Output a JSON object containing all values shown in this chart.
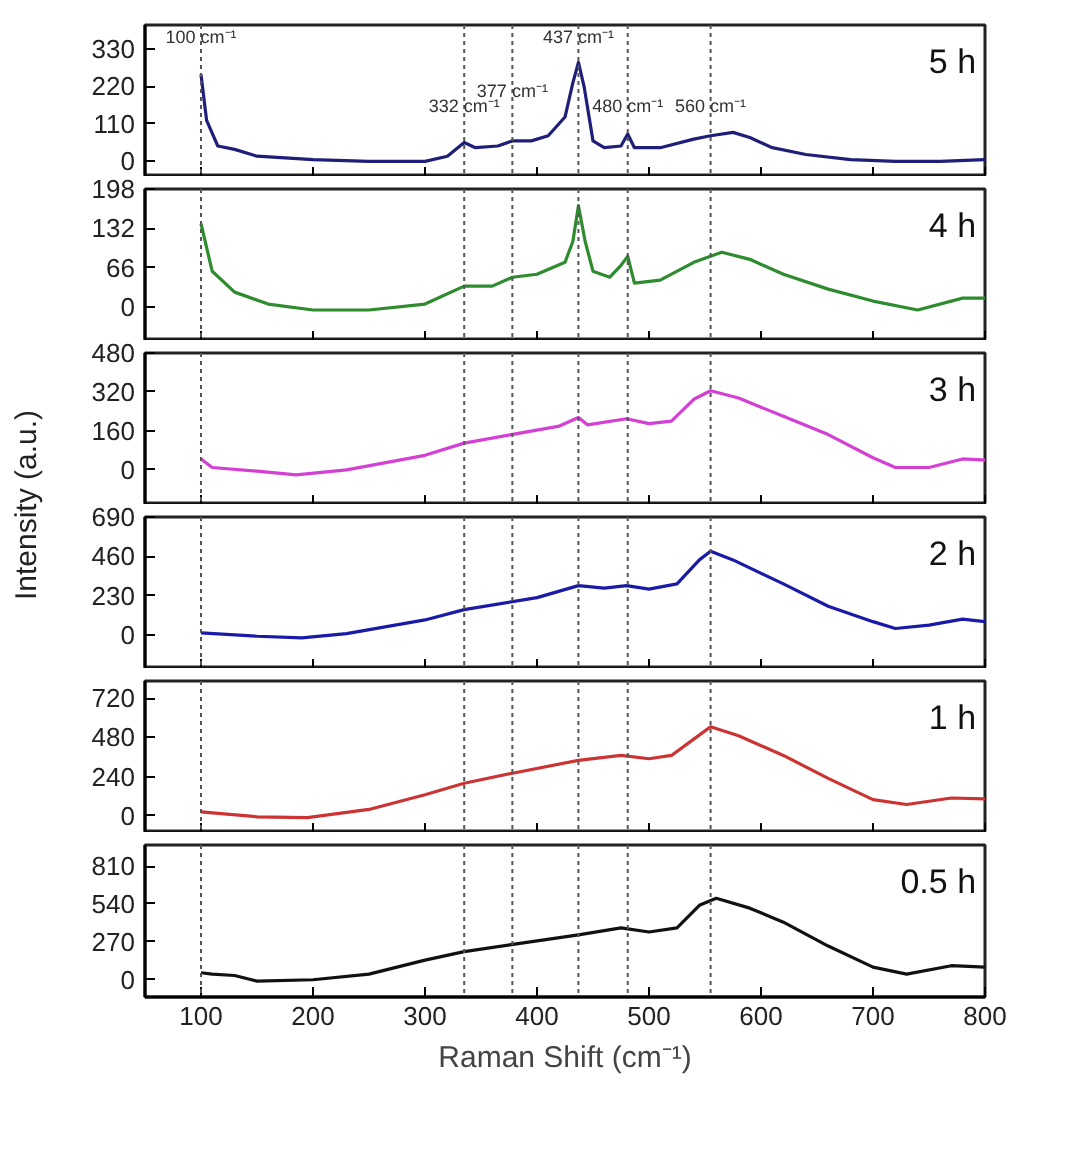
{
  "chart_data": [
    {
      "type": "line",
      "xlim": [
        50,
        800
      ],
      "xticks": [
        100,
        200,
        300,
        400,
        500,
        600,
        700,
        800
      ],
      "ylim": [
        -46,
        400
      ],
      "yticks": [
        0,
        110,
        220,
        330
      ],
      "tick_labels": "y",
      "ref_lines": [
        {
          "axis": "x",
          "value": 100,
          "label": "100 cm⁻¹"
        },
        {
          "axis": "x",
          "value": 335,
          "label": "332 cm⁻¹"
        },
        {
          "axis": "x",
          "value": 378,
          "label": "377 cm⁻¹"
        },
        {
          "axis": "x",
          "value": 437,
          "label": "437 cm⁻¹"
        },
        {
          "axis": "x",
          "value": 481,
          "label": "480 cm⁻¹"
        },
        {
          "axis": "x",
          "value": 555,
          "label": "560 cm⁻¹"
        }
      ],
      "series": [
        {
          "name": "5 h",
          "color": "#1f1f7a",
          "x": [
            100,
            105,
            115,
            130,
            150,
            200,
            250,
            300,
            320,
            335,
            345,
            365,
            378,
            395,
            410,
            425,
            432,
            437,
            442,
            450,
            460,
            475,
            481,
            487,
            510,
            540,
            555,
            575,
            590,
            610,
            640,
            680,
            720,
            760,
            800
          ],
          "values": [
            255,
            120,
            45,
            35,
            15,
            5,
            0,
            0,
            15,
            55,
            40,
            45,
            60,
            60,
            75,
            130,
            230,
            290,
            220,
            60,
            40,
            45,
            80,
            40,
            40,
            65,
            75,
            85,
            70,
            40,
            20,
            5,
            0,
            0,
            5
          ]
        }
      ]
    },
    {
      "type": "line",
      "xlim": [
        50,
        800
      ],
      "xticks": [
        100,
        200,
        300,
        400,
        500,
        600,
        700,
        800
      ],
      "ylim": [
        -57,
        198
      ],
      "yticks": [
        0,
        66,
        132,
        198
      ],
      "tick_labels": "y",
      "ref_lines": [
        {
          "axis": "x",
          "value": 100
        },
        {
          "axis": "x",
          "value": 335
        },
        {
          "axis": "x",
          "value": 378
        },
        {
          "axis": "x",
          "value": 437
        },
        {
          "axis": "x",
          "value": 481
        },
        {
          "axis": "x",
          "value": 555
        }
      ],
      "series": [
        {
          "name": "4 h",
          "color": "#2e8b2e",
          "x": [
            100,
            110,
            130,
            160,
            200,
            250,
            300,
            335,
            360,
            378,
            400,
            425,
            432,
            437,
            443,
            450,
            465,
            475,
            481,
            487,
            510,
            540,
            565,
            590,
            620,
            660,
            700,
            740,
            780,
            800
          ],
          "values": [
            140,
            60,
            25,
            5,
            -5,
            -5,
            5,
            35,
            35,
            50,
            55,
            75,
            110,
            170,
            110,
            60,
            50,
            70,
            85,
            40,
            45,
            75,
            92,
            80,
            55,
            30,
            10,
            -5,
            15,
            15
          ]
        }
      ]
    },
    {
      "type": "line",
      "xlim": [
        50,
        800
      ],
      "xticks": [
        100,
        200,
        300,
        400,
        500,
        600,
        700,
        800
      ],
      "ylim": [
        -144,
        480
      ],
      "yticks": [
        0,
        160,
        320,
        480
      ],
      "tick_labels": "y",
      "ylabel": "Intensity (a.u.)",
      "ref_lines": [
        {
          "axis": "x",
          "value": 100
        },
        {
          "axis": "x",
          "value": 335
        },
        {
          "axis": "x",
          "value": 378
        },
        {
          "axis": "x",
          "value": 437
        },
        {
          "axis": "x",
          "value": 481
        },
        {
          "axis": "x",
          "value": 555
        }
      ],
      "series": [
        {
          "name": "3 h",
          "color": "#d43fd4",
          "x": [
            100,
            110,
            150,
            185,
            230,
            300,
            335,
            377,
            420,
            437,
            445,
            480,
            500,
            520,
            540,
            555,
            580,
            620,
            660,
            700,
            720,
            750,
            780,
            800
          ],
          "values": [
            45,
            10,
            -5,
            -20,
            0,
            60,
            110,
            145,
            180,
            215,
            185,
            210,
            190,
            200,
            290,
            325,
            295,
            220,
            145,
            50,
            10,
            10,
            45,
            40
          ]
        }
      ]
    },
    {
      "type": "line",
      "xlim": [
        50,
        800
      ],
      "xticks": [
        100,
        200,
        300,
        400,
        500,
        600,
        700,
        800
      ],
      "ylim": [
        -196,
        690
      ],
      "yticks": [
        0,
        230,
        460,
        690
      ],
      "tick_labels": "y",
      "ref_lines": [
        {
          "axis": "x",
          "value": 100
        },
        {
          "axis": "x",
          "value": 335
        },
        {
          "axis": "x",
          "value": 378
        },
        {
          "axis": "x",
          "value": 437
        },
        {
          "axis": "x",
          "value": 481
        },
        {
          "axis": "x",
          "value": 555
        }
      ],
      "series": [
        {
          "name": "2 h",
          "color": "#1a1aa8",
          "x": [
            100,
            150,
            190,
            230,
            300,
            335,
            400,
            437,
            460,
            480,
            500,
            525,
            545,
            555,
            575,
            620,
            660,
            700,
            720,
            750,
            780,
            800
          ],
          "values": [
            15,
            -5,
            -15,
            10,
            90,
            150,
            220,
            290,
            275,
            290,
            270,
            300,
            440,
            490,
            440,
            300,
            170,
            80,
            40,
            60,
            95,
            80
          ]
        }
      ]
    },
    {
      "type": "line",
      "xlim": [
        50,
        800
      ],
      "xticks": [
        100,
        200,
        300,
        400,
        500,
        600,
        700,
        800
      ],
      "ylim": [
        -104,
        825
      ],
      "yticks": [
        0,
        240,
        480,
        720
      ],
      "tick_labels": "y",
      "ref_lines": [
        {
          "axis": "x",
          "value": 100
        },
        {
          "axis": "x",
          "value": 335
        },
        {
          "axis": "x",
          "value": 378
        },
        {
          "axis": "x",
          "value": 437
        },
        {
          "axis": "x",
          "value": 481
        },
        {
          "axis": "x",
          "value": 555
        }
      ],
      "series": [
        {
          "name": "1 h",
          "color": "#cc3333",
          "x": [
            100,
            150,
            195,
            250,
            300,
            335,
            377,
            437,
            475,
            500,
            520,
            540,
            555,
            580,
            620,
            660,
            700,
            730,
            770,
            800
          ],
          "values": [
            25,
            -5,
            -10,
            40,
            130,
            200,
            260,
            340,
            370,
            350,
            370,
            470,
            545,
            490,
            370,
            230,
            100,
            70,
            110,
            105
          ]
        }
      ]
    },
    {
      "type": "line",
      "xlim": [
        50,
        800
      ],
      "xticks": [
        100,
        200,
        300,
        400,
        500,
        600,
        700,
        800
      ],
      "ylim": [
        -123,
        960
      ],
      "yticks": [
        0,
        270,
        540,
        810
      ],
      "xlabel": "Raman Shift (cm⁻¹)",
      "ref_lines": [
        {
          "axis": "x",
          "value": 100
        },
        {
          "axis": "x",
          "value": 335
        },
        {
          "axis": "x",
          "value": 378
        },
        {
          "axis": "x",
          "value": 437
        },
        {
          "axis": "x",
          "value": 481
        },
        {
          "axis": "x",
          "value": 555
        }
      ],
      "series": [
        {
          "name": "0.5 h",
          "color": "#111111",
          "x": [
            100,
            110,
            130,
            150,
            200,
            250,
            300,
            335,
            377,
            437,
            475,
            500,
            525,
            545,
            560,
            590,
            620,
            660,
            700,
            730,
            770,
            800
          ],
          "values": [
            50,
            40,
            30,
            -10,
            0,
            40,
            140,
            200,
            250,
            320,
            370,
            340,
            370,
            530,
            580,
            510,
            410,
            240,
            90,
            40,
            100,
            90
          ]
        }
      ]
    }
  ]
}
